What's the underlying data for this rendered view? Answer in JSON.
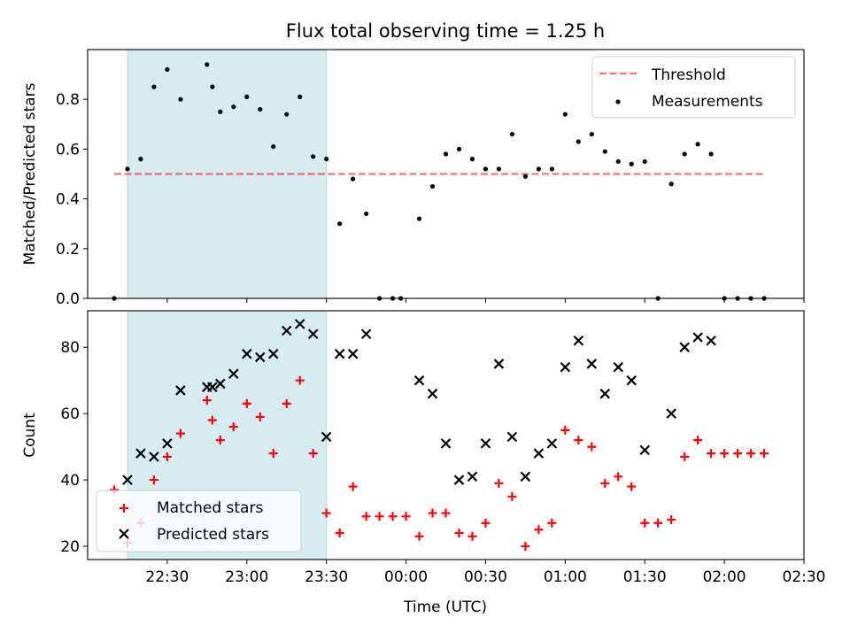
{
  "title": "Flux total observing time = 1.25 h",
  "colors": {
    "shade": "#add8e6",
    "threshold": "#ff0000",
    "measurements": "#000000",
    "matched": "#ff0000",
    "predicted": "#000000"
  },
  "chart_data": [
    {
      "type": "scatter",
      "ylabel": "Matched/Predicted stars",
      "ylim": [
        0,
        1.0
      ],
      "y_ticks": [
        "0.0",
        "0.2",
        "0.4",
        "0.6",
        "0.8"
      ],
      "legend": {
        "placement": "top-right",
        "threshold_label": "Threshold",
        "measurements_label": "Measurements"
      },
      "shaded_span": [
        "22:15",
        "23:30"
      ],
      "threshold": {
        "value": 0.5,
        "x_start": "22:10",
        "x_end": "02:15"
      },
      "series": [
        {
          "name": "Measurements",
          "points": [
            [
              "22:10",
              0.0
            ],
            [
              "22:15",
              0.52
            ],
            [
              "22:20",
              0.56
            ],
            [
              "22:25",
              0.85
            ],
            [
              "22:30",
              0.92
            ],
            [
              "22:35",
              0.8
            ],
            [
              "22:45",
              0.94
            ],
            [
              "22:47",
              0.85
            ],
            [
              "22:50",
              0.75
            ],
            [
              "22:55",
              0.77
            ],
            [
              "23:00",
              0.81
            ],
            [
              "23:05",
              0.76
            ],
            [
              "23:10",
              0.61
            ],
            [
              "23:15",
              0.74
            ],
            [
              "23:20",
              0.81
            ],
            [
              "23:25",
              0.57
            ],
            [
              "23:30",
              0.56
            ],
            [
              "23:35",
              0.3
            ],
            [
              "23:40",
              0.48
            ],
            [
              "23:45",
              0.34
            ],
            [
              "23:50",
              0.0
            ],
            [
              "23:55",
              0.0
            ],
            [
              "23:58",
              0.0
            ],
            [
              "00:05",
              0.32
            ],
            [
              "00:10",
              0.45
            ],
            [
              "00:15",
              0.58
            ],
            [
              "00:20",
              0.6
            ],
            [
              "00:25",
              0.56
            ],
            [
              "00:30",
              0.52
            ],
            [
              "00:35",
              0.52
            ],
            [
              "00:40",
              0.66
            ],
            [
              "00:45",
              0.49
            ],
            [
              "00:50",
              0.52
            ],
            [
              "00:55",
              0.52
            ],
            [
              "01:00",
              0.74
            ],
            [
              "01:05",
              0.63
            ],
            [
              "01:10",
              0.66
            ],
            [
              "01:15",
              0.59
            ],
            [
              "01:20",
              0.55
            ],
            [
              "01:25",
              0.54
            ],
            [
              "01:30",
              0.55
            ],
            [
              "01:35",
              0.0
            ],
            [
              "01:40",
              0.46
            ],
            [
              "01:45",
              0.58
            ],
            [
              "01:50",
              0.62
            ],
            [
              "01:55",
              0.58
            ],
            [
              "02:00",
              0.0
            ],
            [
              "02:05",
              0.0
            ],
            [
              "02:10",
              0.0
            ],
            [
              "02:15",
              0.0
            ]
          ]
        }
      ]
    },
    {
      "type": "scatter",
      "xlabel": "Time (UTC)",
      "ylabel": "Count",
      "ylim": [
        16,
        91
      ],
      "y_ticks": [
        "20",
        "40",
        "60",
        "80"
      ],
      "x_ticks": [
        "22:30",
        "23:00",
        "23:30",
        "00:00",
        "00:30",
        "01:00",
        "01:30",
        "02:00",
        "02:30"
      ],
      "legend": {
        "placement": "bottom-left"
      },
      "shaded_span": [
        "22:15",
        "23:30"
      ],
      "series": [
        {
          "name": "Matched stars",
          "points": [
            [
              "22:10",
              37
            ],
            [
              "22:15",
              21
            ],
            [
              "22:20",
              27
            ],
            [
              "22:25",
              40
            ],
            [
              "22:30",
              47
            ],
            [
              "22:35",
              54
            ],
            [
              "22:45",
              64
            ],
            [
              "22:47",
              58
            ],
            [
              "22:50",
              52
            ],
            [
              "22:55",
              56
            ],
            [
              "23:00",
              63
            ],
            [
              "23:05",
              59
            ],
            [
              "23:10",
              48
            ],
            [
              "23:15",
              63
            ],
            [
              "23:20",
              70
            ],
            [
              "23:25",
              48
            ],
            [
              "23:30",
              30
            ],
            [
              "23:35",
              24
            ],
            [
              "23:40",
              38
            ],
            [
              "23:45",
              29
            ],
            [
              "23:50",
              29
            ],
            [
              "23:55",
              29
            ],
            [
              "00:00",
              29
            ],
            [
              "00:05",
              23
            ],
            [
              "00:10",
              30
            ],
            [
              "00:15",
              30
            ],
            [
              "00:20",
              24
            ],
            [
              "00:25",
              23
            ],
            [
              "00:30",
              27
            ],
            [
              "00:35",
              39
            ],
            [
              "00:40",
              35
            ],
            [
              "00:45",
              20
            ],
            [
              "00:50",
              25
            ],
            [
              "00:55",
              27
            ],
            [
              "01:00",
              55
            ],
            [
              "01:05",
              52
            ],
            [
              "01:10",
              50
            ],
            [
              "01:15",
              39
            ],
            [
              "01:20",
              41
            ],
            [
              "01:25",
              38
            ],
            [
              "01:30",
              27
            ],
            [
              "01:35",
              27
            ],
            [
              "01:40",
              28
            ],
            [
              "01:45",
              47
            ],
            [
              "01:50",
              52
            ],
            [
              "01:55",
              48
            ],
            [
              "02:00",
              48
            ],
            [
              "02:05",
              48
            ],
            [
              "02:10",
              48
            ],
            [
              "02:15",
              48
            ]
          ]
        },
        {
          "name": "Predicted stars",
          "points": [
            [
              "22:15",
              40
            ],
            [
              "22:20",
              48
            ],
            [
              "22:25",
              47
            ],
            [
              "22:30",
              51
            ],
            [
              "22:35",
              67
            ],
            [
              "22:45",
              68
            ],
            [
              "22:47",
              68
            ],
            [
              "22:50",
              69
            ],
            [
              "22:55",
              72
            ],
            [
              "23:00",
              78
            ],
            [
              "23:05",
              77
            ],
            [
              "23:10",
              78
            ],
            [
              "23:15",
              85
            ],
            [
              "23:20",
              87
            ],
            [
              "23:25",
              84
            ],
            [
              "23:30",
              53
            ],
            [
              "23:35",
              78
            ],
            [
              "23:40",
              78
            ],
            [
              "23:45",
              84
            ],
            [
              "00:05",
              70
            ],
            [
              "00:10",
              66
            ],
            [
              "00:15",
              51
            ],
            [
              "00:20",
              40
            ],
            [
              "00:25",
              41
            ],
            [
              "00:30",
              51
            ],
            [
              "00:35",
              75
            ],
            [
              "00:40",
              53
            ],
            [
              "00:45",
              41
            ],
            [
              "00:50",
              48
            ],
            [
              "00:55",
              51
            ],
            [
              "01:00",
              74
            ],
            [
              "01:05",
              82
            ],
            [
              "01:10",
              75
            ],
            [
              "01:15",
              66
            ],
            [
              "01:20",
              74
            ],
            [
              "01:25",
              70
            ],
            [
              "01:30",
              49
            ],
            [
              "01:40",
              60
            ],
            [
              "01:45",
              80
            ],
            [
              "01:50",
              83
            ],
            [
              "01:55",
              82
            ]
          ]
        }
      ]
    }
  ]
}
